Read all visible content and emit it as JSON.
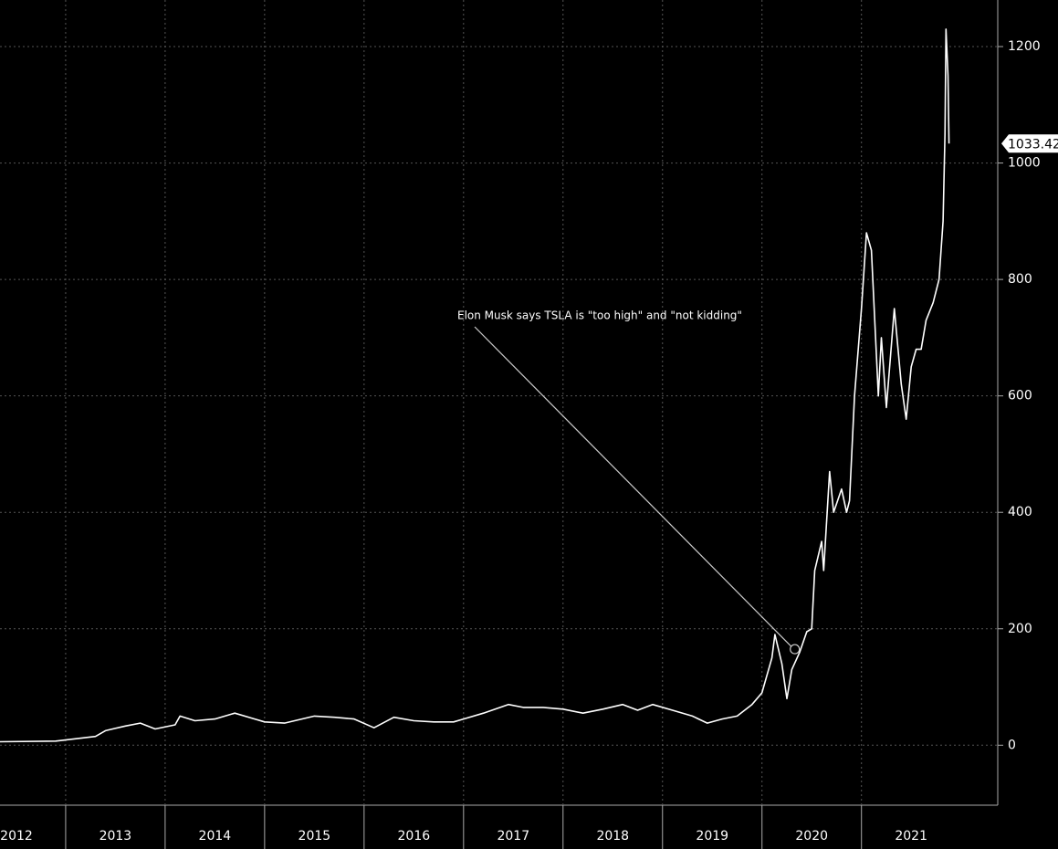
{
  "chart_data": {
    "type": "line",
    "xlim": [
      2012.34,
      2022.37
    ],
    "xticks": [
      2012,
      2013,
      2014,
      2015,
      2016,
      2017,
      2018,
      2019,
      2020,
      2021
    ],
    "ylim": [
      -103,
      1280
    ],
    "yticks": [
      0,
      200,
      400,
      600,
      800,
      1000,
      1200
    ],
    "grid": true,
    "series": [
      {
        "color": "#ffffff",
        "x": [
          2012.34,
          2012.9,
          2013.3,
          2013.4,
          2013.6,
          2013.75,
          2013.9,
          2014.1,
          2014.15,
          2014.3,
          2014.5,
          2014.7,
          2014.9,
          2015.0,
          2015.2,
          2015.5,
          2015.7,
          2015.9,
          2016.1,
          2016.3,
          2016.5,
          2016.7,
          2016.9,
          2017.0,
          2017.2,
          2017.45,
          2017.6,
          2017.8,
          2018.0,
          2018.2,
          2018.4,
          2018.6,
          2018.75,
          2018.9,
          2019.1,
          2019.3,
          2019.45,
          2019.6,
          2019.75,
          2019.9,
          2020.0,
          2020.1,
          2020.13,
          2020.2,
          2020.25,
          2020.3,
          2020.38,
          2020.45,
          2020.5,
          2020.53,
          2020.6,
          2020.62,
          2020.68,
          2020.72,
          2020.8,
          2020.85,
          2020.88,
          2020.93,
          2021.0,
          2021.05,
          2021.1,
          2021.17,
          2021.2,
          2021.25,
          2021.33,
          2021.4,
          2021.45,
          2021.5,
          2021.55,
          2021.6,
          2021.65,
          2021.72,
          2021.78,
          2021.82,
          2021.84,
          2021.85,
          2021.87,
          2021.88
        ],
        "values": [
          6,
          7,
          15,
          25,
          33,
          38,
          28,
          35,
          50,
          42,
          45,
          55,
          45,
          40,
          38,
          50,
          48,
          45,
          30,
          48,
          42,
          40,
          40,
          45,
          55,
          70,
          65,
          65,
          62,
          55,
          62,
          70,
          60,
          70,
          60,
          50,
          38,
          45,
          50,
          70,
          90,
          150,
          190,
          140,
          80,
          130,
          160,
          195,
          200,
          300,
          350,
          300,
          470,
          400,
          440,
          400,
          420,
          600,
          750,
          880,
          850,
          600,
          700,
          580,
          750,
          620,
          560,
          650,
          680,
          680,
          730,
          760,
          800,
          900,
          1050,
          1230,
          1150,
          1033.42
        ]
      }
    ],
    "annotation": {
      "text": "Elon Musk says TSLA is \"too high\" and \"not kidding\"",
      "x": 2020.33,
      "y": 165
    }
  }
}
